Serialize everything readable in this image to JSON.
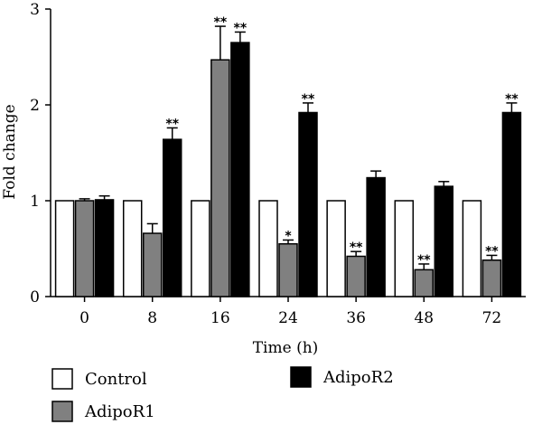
{
  "chart_data": {
    "type": "bar",
    "xlabel": "Time (h)",
    "ylabel": "Fold change",
    "ylim": [
      0,
      3
    ],
    "yticks": [
      0,
      1,
      2,
      3
    ],
    "categories": [
      "0",
      "8",
      "16",
      "24",
      "36",
      "48",
      "72"
    ],
    "grid": false,
    "legend_position": "bottom",
    "series": [
      {
        "name": "Control",
        "color": "#ffffff",
        "values": [
          1.0,
          1.0,
          1.0,
          1.0,
          1.0,
          1.0,
          1.0
        ],
        "errors": [
          0,
          0,
          0,
          0,
          0,
          0,
          0
        ],
        "significance": [
          "",
          "",
          "",
          "",
          "",
          "",
          ""
        ]
      },
      {
        "name": "AdipoR1",
        "color": "#808080",
        "values": [
          1.0,
          0.66,
          2.47,
          0.55,
          0.42,
          0.28,
          0.38
        ],
        "errors": [
          0.02,
          0.1,
          0.35,
          0.04,
          0.05,
          0.06,
          0.05
        ],
        "significance": [
          "",
          "",
          "**",
          "*",
          "**",
          "**",
          "**"
        ]
      },
      {
        "name": "AdipoR2",
        "color": "#000000",
        "values": [
          1.01,
          1.64,
          2.65,
          1.92,
          1.24,
          1.15,
          1.92
        ],
        "errors": [
          0.04,
          0.12,
          0.11,
          0.1,
          0.07,
          0.05,
          0.1
        ],
        "significance": [
          "",
          "**",
          "**",
          "**",
          "",
          "",
          "**"
        ]
      }
    ]
  }
}
